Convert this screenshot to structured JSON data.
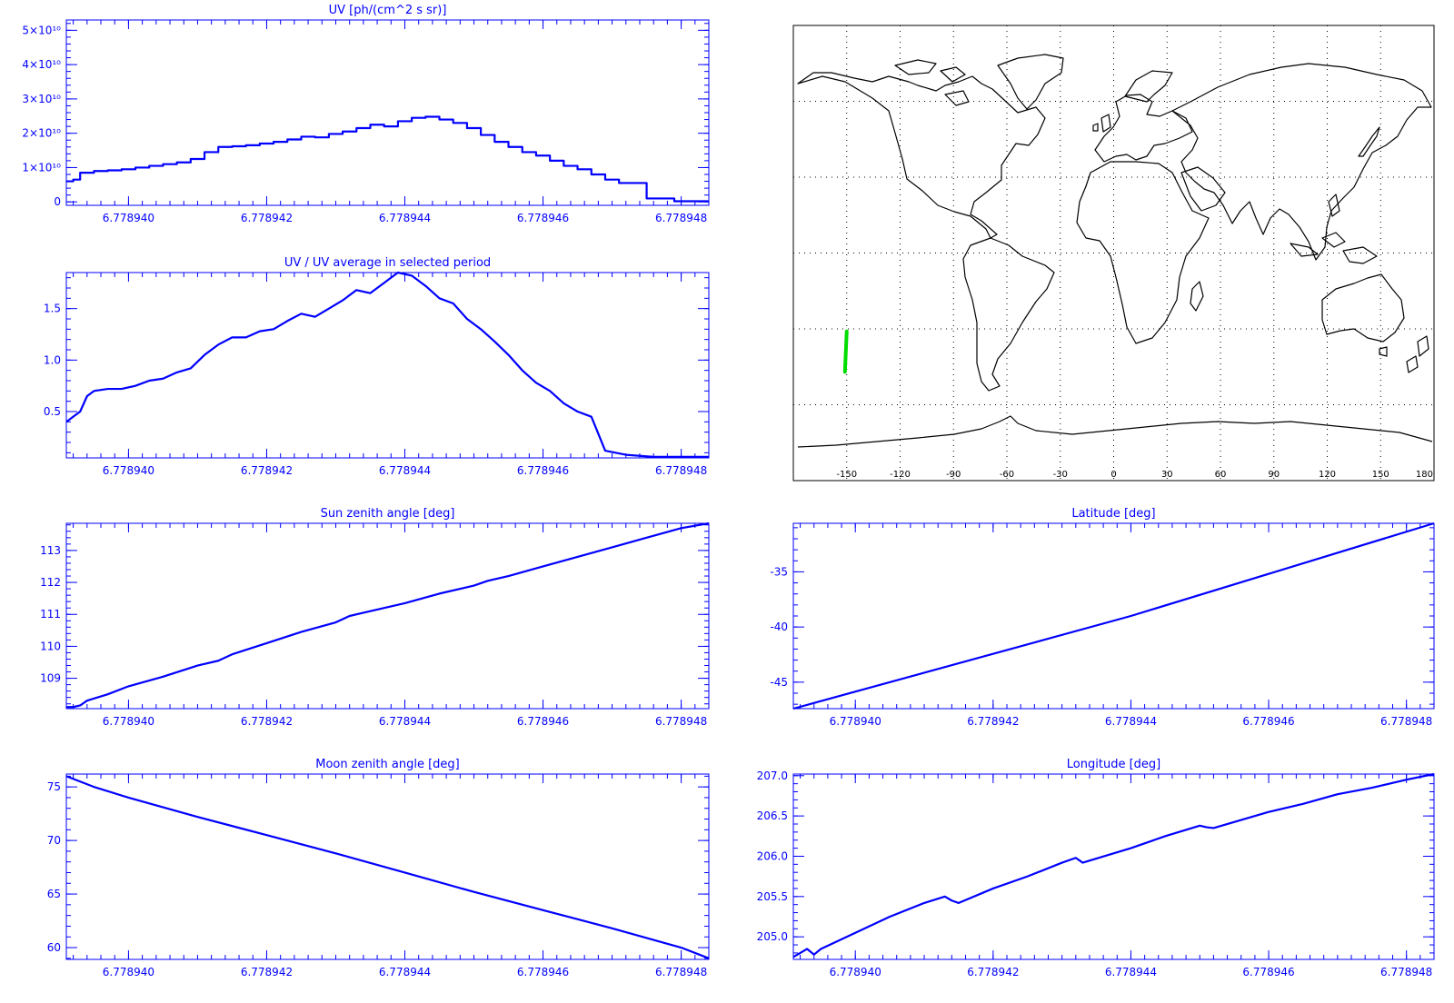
{
  "colors": {
    "plot": "#0000ff",
    "track": "#00dd00",
    "map_line": "#000000",
    "grid": "#000000"
  },
  "map": {
    "lon_ticks": [
      "-150",
      "-120",
      "-90",
      "-60",
      "-30",
      "0",
      "30",
      "60",
      "90",
      "120",
      "150",
      "180"
    ],
    "track": {
      "lon": [
        -151,
        -150
      ],
      "lat": [
        -47,
        -31
      ]
    }
  },
  "chart_data": [
    {
      "id": "uv",
      "type": "line",
      "step": true,
      "title": "UV [ph/(cm^2 s sr)]",
      "xlim": [
        6.7789391,
        6.7789484
      ],
      "ylim": [
        -1000000000.0,
        53000000000.0
      ],
      "xticks": [
        6.77894,
        6.778942,
        6.778944,
        6.778946,
        6.778948
      ],
      "xtick_labels": [
        "6.778940",
        "6.778942",
        "6.778944",
        "6.778946",
        "6.778948"
      ],
      "yticks": [
        0,
        10000000000.0,
        20000000000.0,
        30000000000.0,
        40000000000.0,
        50000000000.0
      ],
      "ytick_labels": [
        "0",
        "1×10¹⁰",
        "2×10¹⁰",
        "3×10¹⁰",
        "4×10¹⁰",
        "5×10¹⁰"
      ],
      "series": [
        {
          "x": [
            6.7789391,
            6.7789392,
            6.7789393,
            6.7789395,
            6.7789397,
            6.7789399,
            6.7789401,
            6.7789403,
            6.7789405,
            6.7789407,
            6.7789409,
            6.7789411,
            6.7789413,
            6.7789415,
            6.7789417,
            6.7789419,
            6.7789421,
            6.7789423,
            6.7789425,
            6.7789427,
            6.7789429,
            6.7789431,
            6.7789433,
            6.7789435,
            6.7789437,
            6.7789439,
            6.7789441,
            6.7789443,
            6.7789445,
            6.7789447,
            6.7789449,
            6.7789451,
            6.7789453,
            6.7789455,
            6.7789457,
            6.7789459,
            6.7789461,
            6.7789463,
            6.7789465,
            6.7789467,
            6.7789469,
            6.7789471,
            6.7789475,
            6.7789479,
            6.7789484
          ],
          "y": [
            6000000000.0,
            6500000000.0,
            8500000000.0,
            9000000000.0,
            9200000000.0,
            9500000000.0,
            10000000000.0,
            10500000000.0,
            11000000000.0,
            11500000000.0,
            12500000000.0,
            14500000000.0,
            16000000000.0,
            16200000000.0,
            16500000000.0,
            17000000000.0,
            17500000000.0,
            18200000000.0,
            19000000000.0,
            18800000000.0,
            19800000000.0,
            20500000000.0,
            21500000000.0,
            22500000000.0,
            22000000000.0,
            23500000000.0,
            24500000000.0,
            24800000000.0,
            24000000000.0,
            23000000000.0,
            21500000000.0,
            19500000000.0,
            17500000000.0,
            16000000000.0,
            14500000000.0,
            13500000000.0,
            12000000000.0,
            10500000000.0,
            9500000000.0,
            8000000000.0,
            6500000000.0,
            5500000000.0,
            1000000000.0,
            200000000.0,
            200000000.0
          ]
        }
      ]
    },
    {
      "id": "uv_ratio",
      "type": "line",
      "title": "UV / UV average in selected period",
      "xlim": [
        6.7789391,
        6.7789484
      ],
      "ylim": [
        0.05,
        1.85
      ],
      "xticks": [
        6.77894,
        6.778942,
        6.778944,
        6.778946,
        6.778948
      ],
      "xtick_labels": [
        "6.778940",
        "6.778942",
        "6.778944",
        "6.778946",
        "6.778948"
      ],
      "yticks": [
        0.5,
        1.0,
        1.5
      ],
      "ytick_labels": [
        "0.5",
        "1.0",
        "1.5"
      ],
      "series": [
        {
          "x": [
            6.7789391,
            6.7789392,
            6.7789393,
            6.7789394,
            6.7789395,
            6.7789397,
            6.7789399,
            6.7789401,
            6.7789403,
            6.7789405,
            6.7789407,
            6.7789409,
            6.7789411,
            6.7789413,
            6.7789415,
            6.7789417,
            6.7789419,
            6.7789421,
            6.7789423,
            6.7789425,
            6.7789427,
            6.7789429,
            6.7789431,
            6.7789433,
            6.7789435,
            6.7789437,
            6.7789438,
            6.7789439,
            6.7789441,
            6.7789443,
            6.7789445,
            6.7789447,
            6.7789449,
            6.7789451,
            6.7789453,
            6.7789455,
            6.7789457,
            6.7789459,
            6.7789461,
            6.7789463,
            6.7789465,
            6.7789467,
            6.7789469,
            6.7789472,
            6.7789476,
            6.7789484
          ],
          "y": [
            0.4,
            0.45,
            0.5,
            0.65,
            0.7,
            0.72,
            0.72,
            0.75,
            0.8,
            0.82,
            0.88,
            0.92,
            1.05,
            1.15,
            1.22,
            1.22,
            1.28,
            1.3,
            1.38,
            1.45,
            1.42,
            1.5,
            1.58,
            1.68,
            1.65,
            1.75,
            1.8,
            1.85,
            1.82,
            1.72,
            1.6,
            1.55,
            1.4,
            1.3,
            1.18,
            1.05,
            0.9,
            0.78,
            0.7,
            0.58,
            0.5,
            0.45,
            0.12,
            0.08,
            0.06,
            0.06
          ]
        }
      ]
    },
    {
      "id": "sun_zenith",
      "type": "line",
      "title": "Sun zenith angle [deg]",
      "xlim": [
        6.7789391,
        6.7789484
      ],
      "ylim": [
        108.05,
        113.85
      ],
      "xticks": [
        6.77894,
        6.778942,
        6.778944,
        6.778946,
        6.778948
      ],
      "xtick_labels": [
        "6.778940",
        "6.778942",
        "6.778944",
        "6.778946",
        "6.778948"
      ],
      "yticks": [
        109,
        110,
        111,
        112,
        113
      ],
      "ytick_labels": [
        "109",
        "110",
        "111",
        "112",
        "113"
      ],
      "series": [
        {
          "x": [
            6.7789391,
            6.7789392,
            6.7789393,
            6.7789394,
            6.7789397,
            6.77894,
            6.7789405,
            6.778941,
            6.7789413,
            6.7789415,
            6.778942,
            6.7789425,
            6.778943,
            6.7789432,
            6.7789434,
            6.778944,
            6.7789445,
            6.778945,
            6.7789452,
            6.7789455,
            6.778946,
            6.7789465,
            6.778947,
            6.7789475,
            6.778948,
            6.7789484
          ],
          "y": [
            108.1,
            108.1,
            108.15,
            108.3,
            108.5,
            108.75,
            109.05,
            109.4,
            109.55,
            109.75,
            110.1,
            110.45,
            110.75,
            110.95,
            111.05,
            111.35,
            111.65,
            111.9,
            112.05,
            112.2,
            112.5,
            112.8,
            113.1,
            113.4,
            113.7,
            113.85
          ]
        }
      ]
    },
    {
      "id": "latitude",
      "type": "line",
      "title": "Latitude [deg]",
      "xlim": [
        6.7789391,
        6.7789484
      ],
      "ylim": [
        -47.4,
        -30.6
      ],
      "xticks": [
        6.77894,
        6.778942,
        6.778944,
        6.778946,
        6.778948
      ],
      "xtick_labels": [
        "6.778940",
        "6.778942",
        "6.778944",
        "6.778946",
        "6.778948"
      ],
      "yticks": [
        -45,
        -40,
        -35
      ],
      "ytick_labels": [
        "-45",
        "-40",
        "-35"
      ],
      "series": [
        {
          "x": [
            6.7789391,
            6.778944,
            6.7789484
          ],
          "y": [
            -47.4,
            -39.0,
            -30.6
          ]
        }
      ]
    },
    {
      "id": "moon_zenith",
      "type": "line",
      "title": "Moon zenith angle [deg]",
      "xlim": [
        6.7789391,
        6.7789484
      ],
      "ylim": [
        58.9,
        76.2
      ],
      "xticks": [
        6.77894,
        6.778942,
        6.778944,
        6.778946,
        6.778948
      ],
      "xtick_labels": [
        "6.778940",
        "6.778942",
        "6.778944",
        "6.778946",
        "6.778948"
      ],
      "yticks": [
        60,
        65,
        70,
        75
      ],
      "ytick_labels": [
        "60",
        "65",
        "70",
        "75"
      ],
      "series": [
        {
          "x": [
            6.7789391,
            6.7789395,
            6.77894,
            6.778941,
            6.778942,
            6.778943,
            6.778944,
            6.778945,
            6.778946,
            6.778947,
            6.778948,
            6.7789484
          ],
          "y": [
            76.0,
            75.0,
            74.0,
            72.2,
            70.5,
            68.8,
            67.0,
            65.2,
            63.5,
            61.8,
            60.0,
            59.0
          ]
        }
      ]
    },
    {
      "id": "longitude",
      "type": "line",
      "title": "Longitude [deg]",
      "xlim": [
        6.7789391,
        6.7789484
      ],
      "ylim": [
        204.72,
        207.02
      ],
      "xticks": [
        6.77894,
        6.778942,
        6.778944,
        6.778946,
        6.778948
      ],
      "xtick_labels": [
        "6.778940",
        "6.778942",
        "6.778944",
        "6.778946",
        "6.778948"
      ],
      "yticks": [
        205.0,
        205.5,
        206.0,
        206.5,
        207.0
      ],
      "ytick_labels": [
        "205.0",
        "205.5",
        "206.0",
        "206.5",
        "207.0"
      ],
      "series": [
        {
          "x": [
            6.7789391,
            6.7789392,
            6.7789393,
            6.7789394,
            6.7789395,
            6.77894,
            6.7789405,
            6.778941,
            6.7789413,
            6.7789414,
            6.7789415,
            6.778942,
            6.7789425,
            6.778943,
            6.7789432,
            6.7789433,
            6.778944,
            6.7789445,
            6.778945,
            6.7789451,
            6.7789452,
            6.778946,
            6.7789465,
            6.778947,
            6.7789475,
            6.778948,
            6.7789484
          ],
          "y": [
            204.75,
            204.8,
            204.85,
            204.78,
            204.85,
            205.05,
            205.25,
            205.42,
            205.5,
            205.45,
            205.42,
            205.6,
            205.75,
            205.92,
            205.98,
            205.92,
            206.1,
            206.25,
            206.38,
            206.36,
            206.35,
            206.55,
            206.65,
            206.77,
            206.85,
            206.95,
            207.02
          ]
        }
      ]
    }
  ]
}
